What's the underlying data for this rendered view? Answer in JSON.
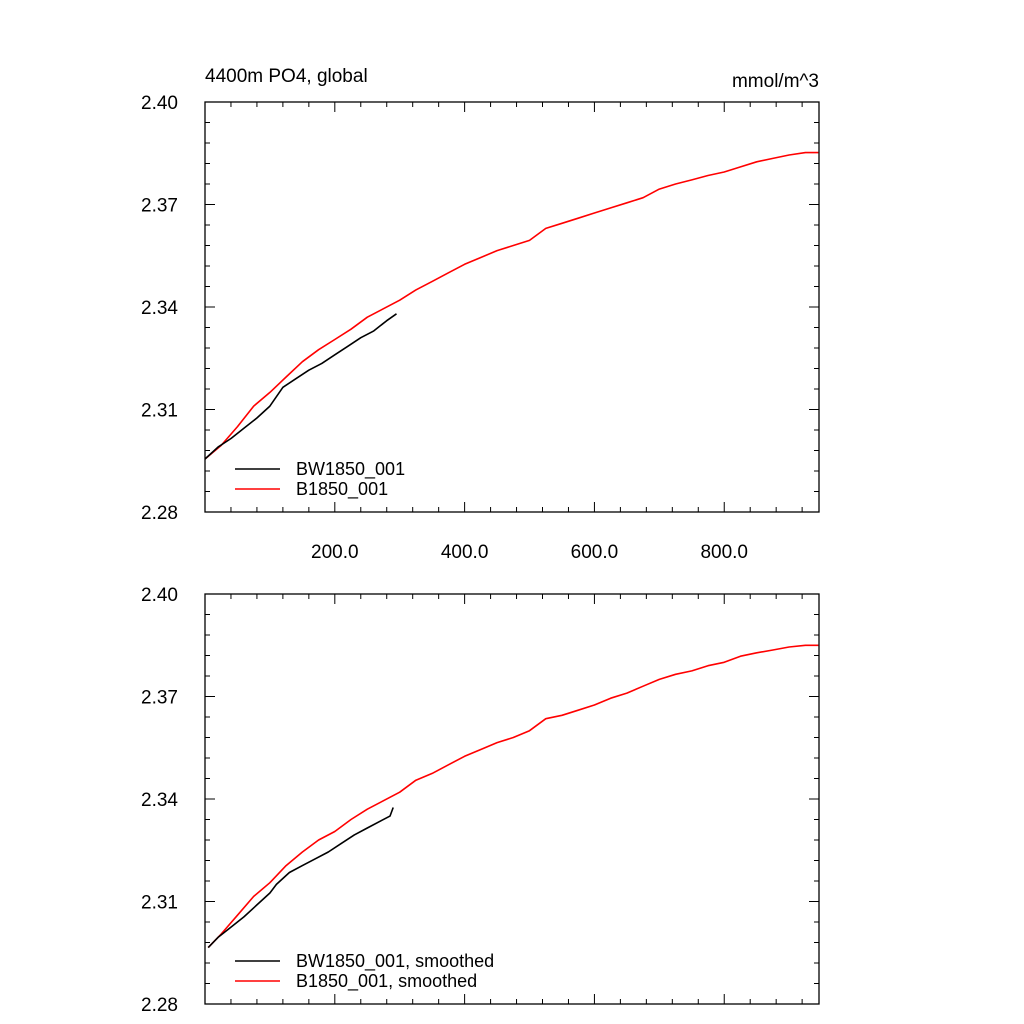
{
  "chart_data": [
    {
      "type": "line",
      "title": "4400m PO4, global",
      "units": "mmol/m^3",
      "xlim": [
        0,
        946
      ],
      "ylim": [
        2.28,
        2.4
      ],
      "yticks": [
        2.28,
        2.31,
        2.34,
        2.37,
        2.4
      ],
      "ytick_labels": [
        "2.28",
        "2.31",
        "2.34",
        "2.37",
        "2.40"
      ],
      "xticks": [
        200,
        400,
        600,
        800
      ],
      "xtick_labels": [
        "200.0",
        "400.0",
        "600.0",
        "800.0"
      ],
      "legend_position": "bottom-left",
      "series": [
        {
          "name": "BW1850_001",
          "color": "#000000",
          "points": [
            [
              0,
              2.2955
            ],
            [
              20,
              2.299
            ],
            [
              40,
              2.3015
            ],
            [
              60,
              2.3045
            ],
            [
              80,
              2.3075
            ],
            [
              100,
              2.311
            ],
            [
              120,
              2.3165
            ],
            [
              140,
              2.319
            ],
            [
              160,
              2.3215
            ],
            [
              180,
              2.3235
            ],
            [
              200,
              2.326
            ],
            [
              220,
              2.3285
            ],
            [
              240,
              2.331
            ],
            [
              260,
              2.333
            ],
            [
              280,
              2.336
            ],
            [
              295,
              2.338
            ]
          ]
        },
        {
          "name": "B1850_001",
          "color": "#ff0000",
          "points": [
            [
              0,
              2.2955
            ],
            [
              25,
              2.2995
            ],
            [
              50,
              2.305
            ],
            [
              75,
              2.311
            ],
            [
              100,
              2.315
            ],
            [
              125,
              2.3195
            ],
            [
              150,
              2.324
            ],
            [
              175,
              2.3275
            ],
            [
              200,
              2.3305
            ],
            [
              225,
              2.3335
            ],
            [
              250,
              2.337
            ],
            [
              275,
              2.3395
            ],
            [
              300,
              2.342
            ],
            [
              325,
              2.345
            ],
            [
              350,
              2.3475
            ],
            [
              375,
              2.35
            ],
            [
              400,
              2.3525
            ],
            [
              425,
              2.3545
            ],
            [
              450,
              2.3565
            ],
            [
              475,
              2.358
            ],
            [
              500,
              2.3595
            ],
            [
              525,
              2.363
            ],
            [
              550,
              2.3645
            ],
            [
              575,
              2.366
            ],
            [
              600,
              2.3675
            ],
            [
              625,
              2.369
            ],
            [
              650,
              2.3705
            ],
            [
              675,
              2.372
            ],
            [
              700,
              2.3745
            ],
            [
              725,
              2.376
            ],
            [
              750,
              2.3772
            ],
            [
              775,
              2.3785
            ],
            [
              800,
              2.3795
            ],
            [
              825,
              2.381
            ],
            [
              850,
              2.3825
            ],
            [
              875,
              2.3835
            ],
            [
              900,
              2.3845
            ],
            [
              925,
              2.3852
            ],
            [
              945,
              2.3852
            ]
          ]
        }
      ]
    },
    {
      "type": "line",
      "title": "",
      "units": "",
      "xlim": [
        0,
        946
      ],
      "ylim": [
        2.28,
        2.4
      ],
      "yticks": [
        2.28,
        2.31,
        2.34,
        2.37,
        2.4
      ],
      "ytick_labels": [
        "2.28",
        "2.31",
        "2.34",
        "2.37",
        "2.40"
      ],
      "xticks": [
        200,
        400,
        600,
        800
      ],
      "xtick_labels": [],
      "legend_position": "bottom-left",
      "series": [
        {
          "name": "BW1850_001, smoothed",
          "color": "#000000",
          "points": [
            [
              5,
              2.2965
            ],
            [
              20,
              2.2995
            ],
            [
              40,
              2.3025
            ],
            [
              60,
              2.3055
            ],
            [
              80,
              2.309
            ],
            [
              100,
              2.3125
            ],
            [
              110,
              2.315
            ],
            [
              130,
              2.3185
            ],
            [
              150,
              2.3205
            ],
            [
              170,
              2.3225
            ],
            [
              190,
              2.3245
            ],
            [
              210,
              2.327
            ],
            [
              230,
              2.3295
            ],
            [
              250,
              2.3315
            ],
            [
              270,
              2.3335
            ],
            [
              285,
              2.335
            ],
            [
              290,
              2.3375
            ]
          ]
        },
        {
          "name": "B1850_001, smoothed",
          "color": "#ff0000",
          "points": [
            [
              5,
              2.2965
            ],
            [
              25,
              2.3005
            ],
            [
              50,
              2.306
            ],
            [
              75,
              2.3115
            ],
            [
              100,
              2.3155
            ],
            [
              125,
              2.3205
            ],
            [
              150,
              2.3245
            ],
            [
              175,
              2.328
            ],
            [
              200,
              2.3305
            ],
            [
              225,
              2.334
            ],
            [
              250,
              2.337
            ],
            [
              275,
              2.3395
            ],
            [
              300,
              2.342
            ],
            [
              325,
              2.3455
            ],
            [
              350,
              2.3475
            ],
            [
              375,
              2.35
            ],
            [
              400,
              2.3525
            ],
            [
              425,
              2.3545
            ],
            [
              450,
              2.3565
            ],
            [
              475,
              2.358
            ],
            [
              500,
              2.36
            ],
            [
              525,
              2.3635
            ],
            [
              550,
              2.3645
            ],
            [
              575,
              2.366
            ],
            [
              600,
              2.3675
            ],
            [
              625,
              2.3695
            ],
            [
              650,
              2.371
            ],
            [
              675,
              2.373
            ],
            [
              700,
              2.375
            ],
            [
              725,
              2.3765
            ],
            [
              750,
              2.3775
            ],
            [
              775,
              2.379
            ],
            [
              800,
              2.38
            ],
            [
              825,
              2.3818
            ],
            [
              850,
              2.3828
            ],
            [
              875,
              2.3836
            ],
            [
              900,
              2.3845
            ],
            [
              925,
              2.385
            ],
            [
              945,
              2.385
            ]
          ]
        }
      ]
    }
  ]
}
